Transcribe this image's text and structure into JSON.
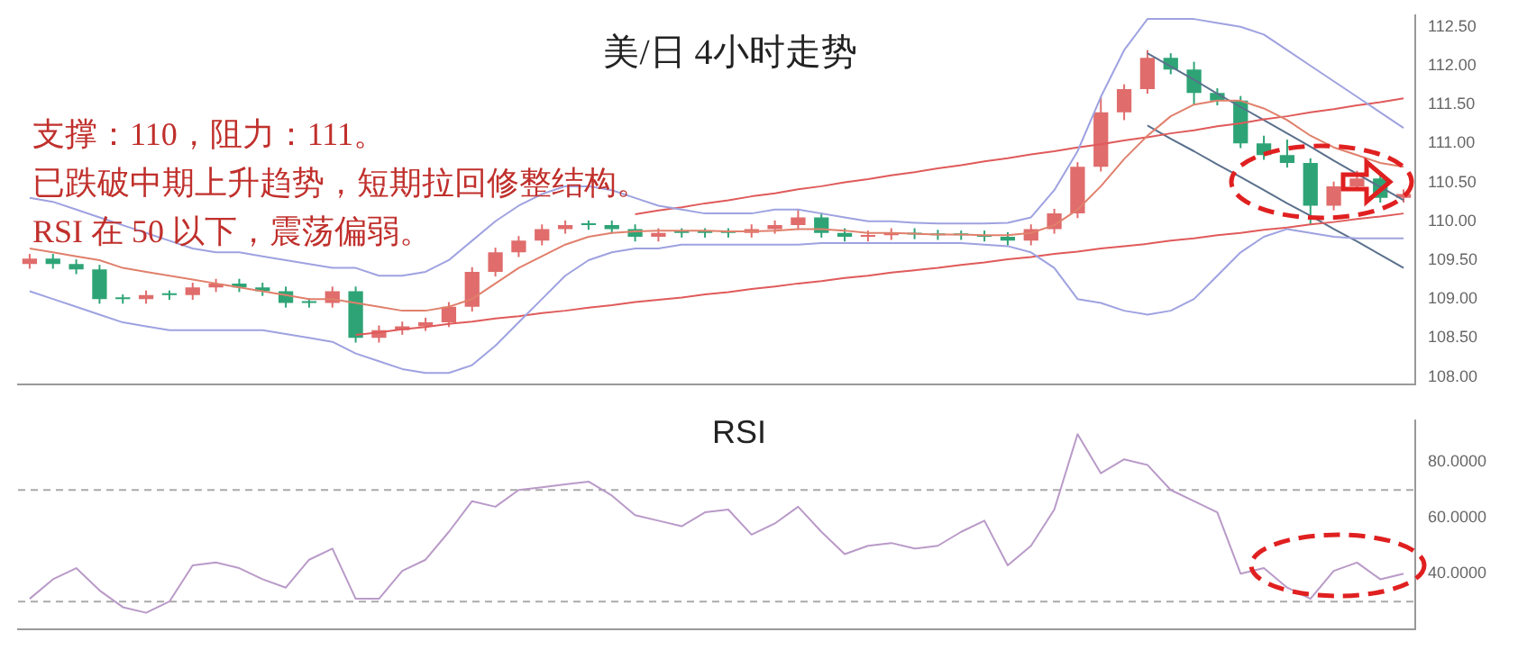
{
  "chart_data": [
    {
      "type": "candlestick",
      "title": "美/日 4小时走势",
      "annotations": [
        "支撑：110，阻力：111。",
        "已跌破中期上升趋势，短期拉回修整结构。",
        "RSI 在 50 以下，震荡偏弱。"
      ],
      "categories": [
        null,
        null,
        null,
        null,
        null,
        null,
        null,
        null,
        null,
        null,
        null,
        null,
        null,
        null,
        null,
        null,
        null,
        null,
        null,
        null,
        null,
        null,
        null,
        null,
        null,
        null,
        null,
        null,
        null,
        null,
        null,
        null,
        null,
        null,
        null,
        null,
        null,
        null,
        null,
        null,
        null,
        null,
        null,
        null,
        null,
        null,
        null,
        null,
        null,
        null,
        null,
        null,
        null,
        null,
        null,
        null,
        null,
        null,
        null,
        null
      ],
      "ohlc": [
        [
          109.45,
          109.58,
          109.39,
          109.52
        ],
        [
          109.52,
          109.58,
          109.39,
          109.45
        ],
        [
          109.45,
          109.51,
          109.32,
          109.38
        ],
        [
          109.38,
          109.44,
          108.94,
          109.0
        ],
        [
          109.0,
          109.06,
          108.94,
          109.0
        ],
        [
          109.0,
          109.11,
          108.94,
          109.05
        ],
        [
          109.05,
          109.11,
          108.99,
          109.05
        ],
        [
          109.05,
          109.21,
          108.99,
          109.15
        ],
        [
          109.15,
          109.26,
          109.09,
          109.2
        ],
        [
          109.2,
          109.26,
          109.09,
          109.15
        ],
        [
          109.15,
          109.21,
          109.04,
          109.1
        ],
        [
          109.1,
          109.16,
          108.89,
          108.95
        ],
        [
          108.95,
          109.01,
          108.89,
          108.95
        ],
        [
          108.95,
          109.16,
          108.89,
          109.1
        ],
        [
          109.1,
          109.16,
          108.44,
          108.5
        ],
        [
          108.5,
          108.66,
          108.44,
          108.6
        ],
        [
          108.6,
          108.71,
          108.54,
          108.65
        ],
        [
          108.65,
          108.76,
          108.59,
          108.7
        ],
        [
          108.7,
          108.96,
          108.64,
          108.9
        ],
        [
          108.9,
          109.41,
          108.84,
          109.35
        ],
        [
          109.35,
          109.66,
          109.29,
          109.6
        ],
        [
          109.6,
          109.81,
          109.54,
          109.75
        ],
        [
          109.75,
          109.96,
          109.69,
          109.9
        ],
        [
          109.9,
          110.01,
          109.84,
          109.95
        ],
        [
          109.95,
          110.01,
          109.89,
          109.95
        ],
        [
          109.95,
          110.01,
          109.84,
          109.9
        ],
        [
          109.9,
          109.96,
          109.74,
          109.8
        ],
        [
          109.8,
          109.91,
          109.74,
          109.85
        ],
        [
          109.85,
          109.91,
          109.79,
          109.85
        ],
        [
          109.85,
          109.91,
          109.79,
          109.85
        ],
        [
          109.85,
          109.91,
          109.79,
          109.85
        ],
        [
          109.85,
          109.96,
          109.79,
          109.9
        ],
        [
          109.9,
          110.01,
          109.84,
          109.95
        ],
        [
          109.95,
          110.16,
          109.89,
          110.05
        ],
        [
          110.05,
          110.11,
          109.79,
          109.85
        ],
        [
          109.85,
          109.91,
          109.74,
          109.8
        ],
        [
          109.8,
          109.88,
          109.74,
          109.82
        ],
        [
          109.82,
          109.91,
          109.76,
          109.85
        ],
        [
          109.85,
          109.91,
          109.77,
          109.83
        ],
        [
          109.83,
          109.89,
          109.76,
          109.82
        ],
        [
          109.82,
          109.88,
          109.76,
          109.82
        ],
        [
          109.82,
          109.88,
          109.74,
          109.8
        ],
        [
          109.8,
          109.86,
          109.69,
          109.75
        ],
        [
          109.75,
          109.96,
          109.69,
          109.9
        ],
        [
          109.9,
          110.16,
          109.84,
          110.1
        ],
        [
          110.1,
          110.76,
          110.04,
          110.7
        ],
        [
          110.7,
          111.6,
          110.64,
          111.4
        ],
        [
          111.4,
          111.76,
          111.3,
          111.7
        ],
        [
          111.7,
          112.2,
          111.64,
          112.1
        ],
        [
          112.1,
          112.16,
          111.89,
          111.95
        ],
        [
          111.95,
          112.05,
          111.5,
          111.65
        ],
        [
          111.65,
          111.71,
          111.49,
          111.55
        ],
        [
          111.55,
          111.61,
          110.94,
          111.0
        ],
        [
          111.0,
          111.1,
          110.79,
          110.85
        ],
        [
          110.85,
          111.05,
          110.69,
          110.75
        ],
        [
          110.75,
          110.81,
          109.95,
          110.2
        ],
        [
          110.2,
          110.51,
          110.14,
          110.45
        ],
        [
          110.45,
          110.65,
          110.39,
          110.55
        ],
        [
          110.55,
          110.61,
          110.24,
          110.3
        ],
        [
          110.3,
          110.41,
          110.24,
          110.35
        ]
      ],
      "colors": [
        "#e06c6c",
        "#2ea476",
        "#2ea476",
        "#2ea476",
        "#2ea476",
        "#e06c6c",
        "#2ea476",
        "#e06c6c",
        "#e06c6c",
        "#2ea476",
        "#2ea476",
        "#2ea476",
        "#2ea476",
        "#e06c6c",
        "#2ea476",
        "#e06c6c",
        "#e06c6c",
        "#e06c6c",
        "#e06c6c",
        "#e06c6c",
        "#e06c6c",
        "#e06c6c",
        "#e06c6c",
        "#e06c6c",
        "#2ea476",
        "#2ea476",
        "#2ea476",
        "#e06c6c",
        "#2ea476",
        "#2ea476",
        "#2ea476",
        "#e06c6c",
        "#e06c6c",
        "#e06c6c",
        "#2ea476",
        "#2ea476",
        "#e06c6c",
        "#e06c6c",
        "#2ea476",
        "#2ea476",
        "#2ea476",
        "#2ea476",
        "#2ea476",
        "#e06c6c",
        "#e06c6c",
        "#e06c6c",
        "#e06c6c",
        "#e06c6c",
        "#e06c6c",
        "#2ea476",
        "#2ea476",
        "#2ea476",
        "#2ea476",
        "#2ea476",
        "#2ea476",
        "#2ea476",
        "#e06c6c",
        "#e06c6c",
        "#2ea476",
        "#e06c6c"
      ],
      "series": [
        {
          "type": "line",
          "color": "#9ea2e0",
          "values": [
            110.3,
            110.25,
            110.15,
            110.05,
            109.95,
            109.85,
            109.75,
            109.65,
            109.6,
            109.6,
            109.55,
            109.5,
            109.45,
            109.4,
            109.4,
            109.3,
            109.3,
            109.35,
            109.5,
            109.75,
            110.0,
            110.2,
            110.35,
            110.45,
            110.45,
            110.4,
            110.3,
            110.2,
            110.15,
            110.1,
            110.1,
            110.1,
            110.15,
            110.15,
            110.1,
            110.05,
            110.0,
            110.0,
            109.98,
            109.97,
            109.97,
            109.97,
            109.98,
            110.05,
            110.4,
            110.9,
            111.6,
            112.2,
            112.6,
            112.6,
            112.6,
            112.55,
            112.5,
            112.4,
            112.2,
            112.0,
            111.8,
            111.6,
            111.4,
            111.2
          ]
        },
        {
          "type": "line",
          "color": "#e0806c",
          "values": [
            109.65,
            109.6,
            109.55,
            109.5,
            109.4,
            109.35,
            109.3,
            109.25,
            109.2,
            109.15,
            109.1,
            109.05,
            109.0,
            109.0,
            108.95,
            108.9,
            108.85,
            108.85,
            108.9,
            109.0,
            109.2,
            109.4,
            109.55,
            109.7,
            109.8,
            109.85,
            109.87,
            109.88,
            109.88,
            109.88,
            109.87,
            109.87,
            109.88,
            109.9,
            109.9,
            109.88,
            109.85,
            109.85,
            109.84,
            109.83,
            109.83,
            109.82,
            109.82,
            109.85,
            109.95,
            110.15,
            110.45,
            110.8,
            111.1,
            111.35,
            111.5,
            111.55,
            111.55,
            111.45,
            111.3,
            111.1,
            110.95,
            110.85,
            110.75,
            110.7
          ]
        },
        {
          "type": "line",
          "color": "#9ea2e0",
          "values": [
            109.1,
            109.0,
            108.9,
            108.8,
            108.7,
            108.65,
            108.6,
            108.6,
            108.6,
            108.6,
            108.6,
            108.55,
            108.5,
            108.45,
            108.3,
            108.2,
            108.1,
            108.05,
            108.05,
            108.15,
            108.4,
            108.7,
            109.0,
            109.3,
            109.5,
            109.6,
            109.65,
            109.65,
            109.7,
            109.7,
            109.7,
            109.7,
            109.7,
            109.7,
            109.72,
            109.72,
            109.72,
            109.72,
            109.72,
            109.72,
            109.72,
            109.7,
            109.68,
            109.6,
            109.4,
            109.0,
            108.95,
            108.85,
            108.8,
            108.85,
            109.0,
            109.3,
            109.6,
            109.8,
            109.9,
            109.85,
            109.8,
            109.78,
            109.78,
            109.78
          ]
        },
        {
          "type": "line",
          "color": "#e05a5a",
          "values": [
            null,
            null,
            null,
            null,
            null,
            null,
            null,
            null,
            null,
            null,
            null,
            null,
            null,
            null,
            108.54,
            108.57,
            108.61,
            108.64,
            108.68,
            108.71,
            108.75,
            108.78,
            108.82,
            108.85,
            108.89,
            108.92,
            108.96,
            108.99,
            109.02,
            109.06,
            109.09,
            109.13,
            109.16,
            109.2,
            109.23,
            109.27,
            109.3,
            109.34,
            109.37,
            109.4,
            109.44,
            109.47,
            109.51,
            109.54,
            109.58,
            109.61,
            109.65,
            109.68,
            109.71,
            109.75,
            109.78,
            109.82,
            109.85,
            109.89,
            109.92,
            109.96,
            109.99,
            110.03,
            110.06,
            110.1
          ]
        },
        {
          "type": "line",
          "color": "#e05a5a",
          "values": [
            null,
            null,
            null,
            null,
            null,
            null,
            null,
            null,
            null,
            null,
            null,
            null,
            null,
            null,
            null,
            null,
            null,
            null,
            null,
            null,
            null,
            null,
            null,
            null,
            null,
            null,
            110.09,
            110.14,
            110.18,
            110.23,
            110.27,
            110.32,
            110.36,
            110.41,
            110.45,
            110.5,
            110.54,
            110.59,
            110.63,
            110.68,
            110.72,
            110.77,
            110.81,
            110.86,
            110.9,
            110.95,
            110.99,
            111.04,
            111.08,
            111.13,
            111.17,
            111.22,
            111.26,
            111.31,
            111.35,
            111.4,
            111.44,
            111.49,
            111.53,
            111.58
          ]
        },
        {
          "type": "line",
          "color": "#5a708c",
          "values": [
            null,
            null,
            null,
            null,
            null,
            null,
            null,
            null,
            null,
            null,
            null,
            null,
            null,
            null,
            null,
            null,
            null,
            null,
            null,
            null,
            null,
            null,
            null,
            null,
            null,
            null,
            null,
            null,
            null,
            null,
            null,
            null,
            null,
            null,
            null,
            null,
            null,
            null,
            null,
            null,
            null,
            null,
            null,
            null,
            null,
            null,
            null,
            null,
            112.16,
            111.99,
            111.82,
            111.64,
            111.47,
            111.3,
            111.13,
            110.96,
            110.78,
            110.61,
            110.44,
            110.27
          ]
        },
        {
          "type": "line",
          "color": "#5a708c",
          "values": [
            null,
            null,
            null,
            null,
            null,
            null,
            null,
            null,
            null,
            null,
            null,
            null,
            null,
            null,
            null,
            null,
            null,
            null,
            null,
            null,
            null,
            null,
            null,
            null,
            null,
            null,
            null,
            null,
            null,
            null,
            null,
            null,
            null,
            null,
            null,
            null,
            null,
            null,
            null,
            null,
            null,
            null,
            null,
            null,
            null,
            null,
            null,
            null,
            111.23,
            111.06,
            110.9,
            110.73,
            110.57,
            110.4,
            110.23,
            110.07,
            109.9,
            109.74,
            109.57,
            109.4
          ]
        }
      ],
      "ylim": [
        107.9,
        112.65
      ],
      "yticks": [
        {
          "value": 108,
          "label": "108.00"
        },
        {
          "value": 108.5,
          "label": "108.50"
        },
        {
          "value": 109,
          "label": "109.00"
        },
        {
          "value": 109.5,
          "label": "109.50"
        },
        {
          "value": 110,
          "label": "110.00"
        },
        {
          "value": 110.5,
          "label": "110.50"
        },
        {
          "value": 111,
          "label": "111.00"
        },
        {
          "value": 111.5,
          "label": "111.50"
        },
        {
          "value": 112,
          "label": "112.00"
        },
        {
          "value": 112.5,
          "label": "112.50"
        }
      ],
      "tick_labels": "y",
      "grid": false
    },
    {
      "type": "line",
      "title": "RSI",
      "categories": [
        null,
        null,
        null,
        null,
        null,
        null,
        null,
        null,
        null,
        null,
        null,
        null,
        null,
        null,
        null,
        null,
        null,
        null,
        null,
        null,
        null,
        null,
        null,
        null,
        null,
        null,
        null,
        null,
        null,
        null,
        null,
        null,
        null,
        null,
        null,
        null,
        null,
        null,
        null,
        null,
        null,
        null,
        null,
        null,
        null,
        null,
        null,
        null,
        null,
        null,
        null,
        null,
        null,
        null,
        null,
        null,
        null,
        null,
        null,
        null
      ],
      "series": [
        {
          "color": "#b99ac8",
          "values": [
            31,
            38,
            42,
            34,
            28,
            26,
            30,
            43,
            44,
            42,
            38,
            35,
            45,
            49,
            31,
            31,
            41,
            45,
            55,
            66,
            64,
            70,
            71,
            72,
            73,
            68,
            61,
            59,
            57,
            62,
            63,
            54,
            58,
            64,
            55,
            47,
            50,
            51,
            49,
            50,
            55,
            59,
            43,
            50,
            63,
            90,
            76,
            81,
            79,
            70,
            66,
            62,
            40,
            42,
            35,
            31,
            41,
            44,
            38,
            40
          ]
        }
      ],
      "ylim": [
        20,
        95
      ],
      "yticks": [
        {
          "value": 40,
          "label": "40.0000"
        },
        {
          "value": 60,
          "label": "60.0000"
        },
        {
          "value": 80,
          "label": "80.0000"
        }
      ],
      "ref_lines": [
        {
          "axis": "y",
          "value": 70,
          "color": "#aaaaaa",
          "line_style": "dashed"
        },
        {
          "axis": "y",
          "value": 30,
          "color": "#aaaaaa",
          "line_style": "dashed"
        }
      ],
      "tick_labels": "y",
      "grid": false
    }
  ]
}
